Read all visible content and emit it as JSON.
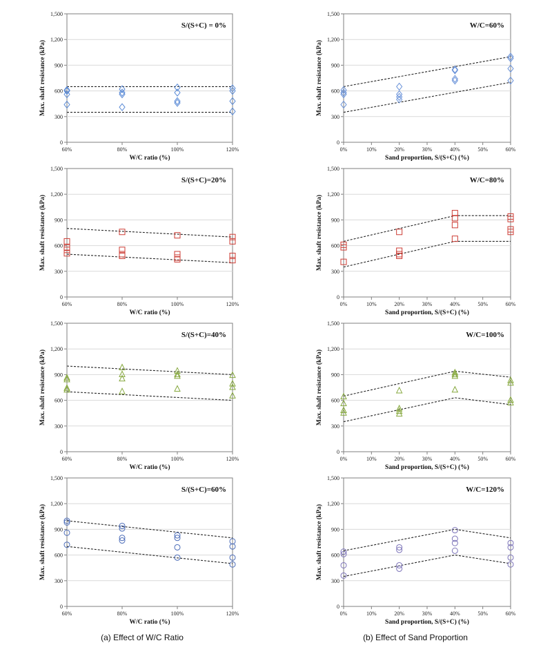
{
  "captions": {
    "left": "(a) Effect of W/C Ratio",
    "right": "(b) Effect of Sand Proportion"
  },
  "colors": {
    "sc0": "#5b8bd6",
    "sc20": "#cc3b33",
    "sc40": "#86a83e",
    "sc60": "#4b6cb8",
    "wc60": "#6b93d9",
    "wc80": "#cc3b33",
    "wc100": "#86a83e",
    "wc120": "#7b72b8",
    "grid": "#d9d9d9",
    "axis": "#7f7f7f",
    "bound": "#222222"
  },
  "chart_data": [
    {
      "id": "a1",
      "type": "scatter",
      "marker": "diamond",
      "color": "sc0",
      "title": "S/(S+C) = 0%",
      "xlabel": "W/C ratio (%)",
      "ylabel": "Max. shaft resistance (kPa)",
      "x_ticks": [
        "60%",
        "80%",
        "100%",
        "120%"
      ],
      "xlim": [
        60,
        120
      ],
      "ylim": [
        0,
        1500
      ],
      "y_ticks": [
        "0",
        "300",
        "600",
        "900",
        "1,200",
        "1,500"
      ],
      "grid": "horizontal",
      "points": [
        [
          60,
          600
        ],
        [
          60,
          560
        ],
        [
          60,
          440
        ],
        [
          60,
          610
        ],
        [
          80,
          620
        ],
        [
          80,
          580
        ],
        [
          80,
          560
        ],
        [
          80,
          410
        ],
        [
          100,
          640
        ],
        [
          100,
          580
        ],
        [
          100,
          480
        ],
        [
          100,
          460
        ],
        [
          120,
          630
        ],
        [
          120,
          600
        ],
        [
          120,
          480
        ],
        [
          120,
          360
        ]
      ],
      "bounds": [
        [
          [
            60,
            650
          ],
          [
            120,
            650
          ]
        ],
        [
          [
            60,
            350
          ],
          [
            120,
            350
          ]
        ]
      ]
    },
    {
      "id": "b1",
      "type": "scatter",
      "marker": "diamond",
      "color": "wc60",
      "title": "W/C=60%",
      "xlabel": "Sand proportion, S/(S+C) (%)",
      "ylabel": "Max. shaft resistance (kPa)",
      "x_ticks": [
        "0%",
        "10%",
        "20%",
        "30%",
        "40%",
        "50%",
        "60%"
      ],
      "xlim": [
        0,
        60
      ],
      "ylim": [
        0,
        1500
      ],
      "y_ticks": [
        "0",
        "300",
        "600",
        "900",
        "1,200",
        "1,500"
      ],
      "grid": "horizontal",
      "points": [
        [
          0,
          610
        ],
        [
          0,
          580
        ],
        [
          0,
          560
        ],
        [
          0,
          440
        ],
        [
          20,
          650
        ],
        [
          20,
          560
        ],
        [
          20,
          530
        ],
        [
          20,
          500
        ],
        [
          40,
          850
        ],
        [
          40,
          840
        ],
        [
          40,
          740
        ],
        [
          40,
          720
        ],
        [
          60,
          1000
        ],
        [
          60,
          980
        ],
        [
          60,
          860
        ],
        [
          60,
          720
        ]
      ],
      "bounds": [
        [
          [
            0,
            650
          ],
          [
            60,
            1000
          ]
        ],
        [
          [
            0,
            350
          ],
          [
            60,
            700
          ]
        ]
      ]
    },
    {
      "id": "a2",
      "type": "scatter",
      "marker": "square",
      "color": "sc20",
      "title": "S/(S+C)=20%",
      "xlabel": "W/C ratio (%)",
      "ylabel": "Max. shaft resistance (kPa)",
      "x_ticks": [
        "60%",
        "80%",
        "100%",
        "120%"
      ],
      "xlim": [
        60,
        120
      ],
      "ylim": [
        0,
        1500
      ],
      "y_ticks": [
        "0",
        "300",
        "600",
        "900",
        "1,200",
        "1,500"
      ],
      "grid": "horizontal",
      "points": [
        [
          60,
          650
        ],
        [
          60,
          580
        ],
        [
          60,
          550
        ],
        [
          60,
          510
        ],
        [
          80,
          760
        ],
        [
          80,
          550
        ],
        [
          80,
          500
        ],
        [
          80,
          480
        ],
        [
          100,
          720
        ],
        [
          100,
          500
        ],
        [
          100,
          460
        ],
        [
          100,
          440
        ],
        [
          120,
          700
        ],
        [
          120,
          650
        ],
        [
          120,
          480
        ],
        [
          120,
          430
        ]
      ],
      "bounds": [
        [
          [
            60,
            800
          ],
          [
            120,
            700
          ]
        ],
        [
          [
            60,
            500
          ],
          [
            120,
            400
          ]
        ]
      ]
    },
    {
      "id": "b2",
      "type": "scatter",
      "marker": "square",
      "color": "wc80",
      "title": "W/C=80%",
      "xlabel": "Sand proportion, S/(S+C) (%)",
      "ylabel": "Max. shaft resistance (kPa)",
      "x_ticks": [
        "0%",
        "10%",
        "20%",
        "30%",
        "40%",
        "50%",
        "60%"
      ],
      "xlim": [
        0,
        60
      ],
      "ylim": [
        0,
        1500
      ],
      "y_ticks": [
        "0",
        "300",
        "600",
        "900",
        "1,200",
        "1,500"
      ],
      "grid": "horizontal",
      "points": [
        [
          0,
          610
        ],
        [
          0,
          580
        ],
        [
          0,
          410
        ],
        [
          20,
          760
        ],
        [
          20,
          540
        ],
        [
          20,
          500
        ],
        [
          20,
          480
        ],
        [
          40,
          980
        ],
        [
          40,
          920
        ],
        [
          40,
          840
        ],
        [
          40,
          680
        ],
        [
          60,
          940
        ],
        [
          60,
          910
        ],
        [
          60,
          790
        ],
        [
          60,
          760
        ]
      ],
      "bounds": [
        [
          [
            0,
            650
          ],
          [
            40,
            950
          ],
          [
            60,
            950
          ]
        ],
        [
          [
            0,
            350
          ],
          [
            40,
            650
          ],
          [
            60,
            650
          ]
        ]
      ]
    },
    {
      "id": "a3",
      "type": "scatter",
      "marker": "triangle",
      "color": "sc40",
      "title": "S/(S+C)=40%",
      "xlabel": "W/C ratio (%)",
      "ylabel": "Max. shaft resistance (kPa)",
      "x_ticks": [
        "60%",
        "80%",
        "100%",
        "120%"
      ],
      "xlim": [
        60,
        120
      ],
      "ylim": [
        0,
        1500
      ],
      "y_ticks": [
        "0",
        "300",
        "600",
        "900",
        "1,200",
        "1,500"
      ],
      "grid": "horizontal",
      "points": [
        [
          60,
          860
        ],
        [
          60,
          840
        ],
        [
          60,
          740
        ],
        [
          60,
          720
        ],
        [
          80,
          980
        ],
        [
          80,
          900
        ],
        [
          80,
          850
        ],
        [
          80,
          700
        ],
        [
          100,
          940
        ],
        [
          100,
          900
        ],
        [
          100,
          880
        ],
        [
          100,
          730
        ],
        [
          120,
          890
        ],
        [
          120,
          790
        ],
        [
          120,
          750
        ],
        [
          120,
          650
        ]
      ],
      "bounds": [
        [
          [
            60,
            1000
          ],
          [
            120,
            900
          ]
        ],
        [
          [
            60,
            700
          ],
          [
            120,
            600
          ]
        ]
      ]
    },
    {
      "id": "b3",
      "type": "scatter",
      "marker": "triangle",
      "color": "wc100",
      "title": "W/C=100%",
      "xlabel": "Sand proportion, S/(S+C) (%)",
      "ylabel": "Max. shaft resistance (kPa)",
      "x_ticks": [
        "0%",
        "10%",
        "20%",
        "30%",
        "40%",
        "50%",
        "60%"
      ],
      "xlim": [
        0,
        60
      ],
      "ylim": [
        0,
        1500
      ],
      "y_ticks": [
        "0",
        "300",
        "600",
        "900",
        "1,200",
        "1,500"
      ],
      "grid": "horizontal",
      "points": [
        [
          0,
          640
        ],
        [
          0,
          560
        ],
        [
          0,
          480
        ],
        [
          0,
          450
        ],
        [
          20,
          710
        ],
        [
          20,
          500
        ],
        [
          20,
          470
        ],
        [
          20,
          440
        ],
        [
          40,
          920
        ],
        [
          40,
          900
        ],
        [
          40,
          880
        ],
        [
          40,
          720
        ],
        [
          60,
          830
        ],
        [
          60,
          800
        ],
        [
          60,
          600
        ],
        [
          60,
          570
        ]
      ],
      "bounds": [
        [
          [
            0,
            650
          ],
          [
            40,
            940
          ],
          [
            60,
            870
          ]
        ],
        [
          [
            0,
            350
          ],
          [
            40,
            630
          ],
          [
            60,
            550
          ]
        ]
      ]
    },
    {
      "id": "a4",
      "type": "scatter",
      "marker": "circle",
      "color": "sc60",
      "title": "S/(S+C)=60%",
      "xlabel": "W/C ratio (%)",
      "ylabel": "Max. shaft resistance (kPa)",
      "x_ticks": [
        "60%",
        "80%",
        "100%",
        "120%"
      ],
      "xlim": [
        60,
        120
      ],
      "ylim": [
        0,
        1500
      ],
      "y_ticks": [
        "0",
        "300",
        "600",
        "900",
        "1,200",
        "1,500"
      ],
      "grid": "horizontal",
      "points": [
        [
          60,
          1000
        ],
        [
          60,
          980
        ],
        [
          60,
          860
        ],
        [
          60,
          720
        ],
        [
          80,
          940
        ],
        [
          80,
          910
        ],
        [
          80,
          800
        ],
        [
          80,
          770
        ],
        [
          100,
          830
        ],
        [
          100,
          800
        ],
        [
          100,
          690
        ],
        [
          100,
          570
        ],
        [
          120,
          760
        ],
        [
          120,
          700
        ],
        [
          120,
          570
        ],
        [
          120,
          490
        ]
      ],
      "bounds": [
        [
          [
            60,
            1000
          ],
          [
            120,
            800
          ]
        ],
        [
          [
            60,
            700
          ],
          [
            120,
            500
          ]
        ]
      ]
    },
    {
      "id": "b4",
      "type": "scatter",
      "marker": "circle",
      "color": "wc120",
      "title": "W/C=120%",
      "xlabel": "Sand proportion, S/(S+C) (%)",
      "ylabel": "Max. shaft resistance (kPa)",
      "x_ticks": [
        "0%",
        "10%",
        "20%",
        "30%",
        "40%",
        "50%",
        "60%"
      ],
      "xlim": [
        0,
        60
      ],
      "ylim": [
        0,
        1500
      ],
      "y_ticks": [
        "0",
        "300",
        "600",
        "900",
        "1,200",
        "1,500"
      ],
      "grid": "horizontal",
      "points": [
        [
          0,
          640
        ],
        [
          0,
          610
        ],
        [
          0,
          480
        ],
        [
          0,
          360
        ],
        [
          20,
          690
        ],
        [
          20,
          660
        ],
        [
          20,
          480
        ],
        [
          20,
          440
        ],
        [
          40,
          890
        ],
        [
          40,
          790
        ],
        [
          40,
          740
        ],
        [
          40,
          650
        ],
        [
          60,
          740
        ],
        [
          60,
          690
        ],
        [
          60,
          570
        ],
        [
          60,
          490
        ]
      ],
      "bounds": [
        [
          [
            0,
            650
          ],
          [
            40,
            900
          ],
          [
            60,
            800
          ]
        ],
        [
          [
            0,
            350
          ],
          [
            40,
            600
          ],
          [
            60,
            500
          ]
        ]
      ]
    }
  ]
}
